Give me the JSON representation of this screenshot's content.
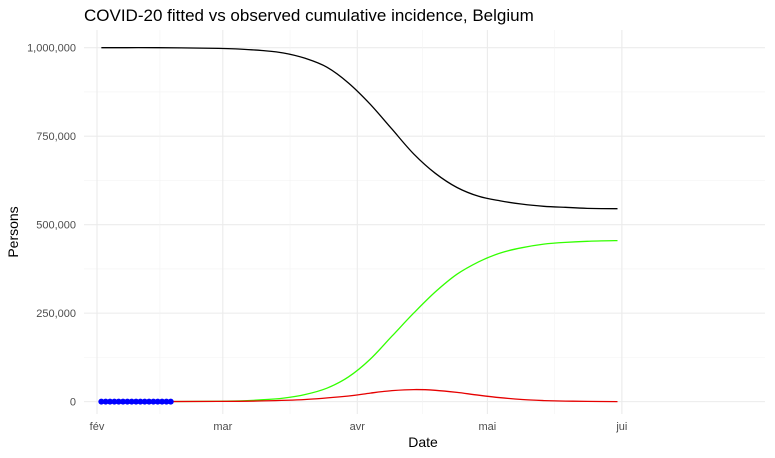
{
  "chart_data": {
    "type": "line",
    "title": "COVID-20 fitted vs observed cumulative incidence, Belgium",
    "xlabel": "Date",
    "ylabel": "Persons",
    "x_range": [
      "2020-01-29",
      "2020-07-04"
    ],
    "y_range": [
      -35000,
      1050000
    ],
    "x_ticks": [
      {
        "date": "2020-02-01",
        "label": "fév"
      },
      {
        "date": "2020-03-01",
        "label": "mar"
      },
      {
        "date": "2020-04-01",
        "label": "avr"
      },
      {
        "date": "2020-05-01",
        "label": "mai"
      },
      {
        "date": "2020-06-01",
        "label": "jui"
      }
    ],
    "y_ticks": [
      {
        "value": 0,
        "label": "0"
      },
      {
        "value": 250000,
        "label": "250,000"
      },
      {
        "value": 500000,
        "label": "500,000"
      },
      {
        "value": 750000,
        "label": "750,000"
      },
      {
        "value": 1000000,
        "label": "1,000,000"
      }
    ],
    "grid": true,
    "legend": "none",
    "series": [
      {
        "kind": "line",
        "color": "#000000",
        "points": [
          [
            "2020-02-02",
            1000000
          ],
          [
            "2020-02-15",
            1000000
          ],
          [
            "2020-02-29",
            998000
          ],
          [
            "2020-03-05",
            996000
          ],
          [
            "2020-03-10",
            992000
          ],
          [
            "2020-03-15",
            985000
          ],
          [
            "2020-03-20",
            970000
          ],
          [
            "2020-03-25",
            945000
          ],
          [
            "2020-03-30",
            900000
          ],
          [
            "2020-04-04",
            840000
          ],
          [
            "2020-04-09",
            770000
          ],
          [
            "2020-04-14",
            700000
          ],
          [
            "2020-04-19",
            645000
          ],
          [
            "2020-04-24",
            605000
          ],
          [
            "2020-04-29",
            580000
          ],
          [
            "2020-05-04",
            567000
          ],
          [
            "2020-05-09",
            558000
          ],
          [
            "2020-05-14",
            552000
          ],
          [
            "2020-05-19",
            549000
          ],
          [
            "2020-05-24",
            546000
          ],
          [
            "2020-05-31",
            545000
          ]
        ]
      },
      {
        "kind": "line",
        "color": "#33ff00",
        "points": [
          [
            "2020-02-02",
            0
          ],
          [
            "2020-02-15",
            0
          ],
          [
            "2020-02-29",
            1000
          ],
          [
            "2020-03-05",
            2000
          ],
          [
            "2020-03-10",
            5000
          ],
          [
            "2020-03-15",
            10000
          ],
          [
            "2020-03-20",
            20000
          ],
          [
            "2020-03-25",
            38000
          ],
          [
            "2020-03-30",
            70000
          ],
          [
            "2020-04-04",
            120000
          ],
          [
            "2020-04-09",
            185000
          ],
          [
            "2020-04-14",
            250000
          ],
          [
            "2020-04-19",
            310000
          ],
          [
            "2020-04-24",
            360000
          ],
          [
            "2020-04-29",
            395000
          ],
          [
            "2020-05-04",
            420000
          ],
          [
            "2020-05-09",
            435000
          ],
          [
            "2020-05-14",
            445000
          ],
          [
            "2020-05-19",
            450000
          ],
          [
            "2020-05-24",
            453000
          ],
          [
            "2020-05-31",
            455000
          ]
        ]
      },
      {
        "kind": "line",
        "color": "#e60000",
        "points": [
          [
            "2020-02-02",
            0
          ],
          [
            "2020-02-29",
            500
          ],
          [
            "2020-03-10",
            2000
          ],
          [
            "2020-03-20",
            6000
          ],
          [
            "2020-03-30",
            16000
          ],
          [
            "2020-04-04",
            24000
          ],
          [
            "2020-04-09",
            31000
          ],
          [
            "2020-04-14",
            34000
          ],
          [
            "2020-04-19",
            32000
          ],
          [
            "2020-04-24",
            26000
          ],
          [
            "2020-04-29",
            18000
          ],
          [
            "2020-05-04",
            11000
          ],
          [
            "2020-05-09",
            6000
          ],
          [
            "2020-05-14",
            3000
          ],
          [
            "2020-05-19",
            1500
          ],
          [
            "2020-05-24",
            700
          ],
          [
            "2020-05-31",
            0
          ]
        ]
      },
      {
        "kind": "scatter",
        "color": "#0000ff",
        "points": [
          [
            "2020-02-02",
            0
          ],
          [
            "2020-02-03",
            0
          ],
          [
            "2020-02-04",
            0
          ],
          [
            "2020-02-05",
            0
          ],
          [
            "2020-02-06",
            0
          ],
          [
            "2020-02-07",
            0
          ],
          [
            "2020-02-08",
            0
          ],
          [
            "2020-02-09",
            0
          ],
          [
            "2020-02-10",
            0
          ],
          [
            "2020-02-11",
            0
          ],
          [
            "2020-02-12",
            0
          ],
          [
            "2020-02-13",
            0
          ],
          [
            "2020-02-14",
            0
          ],
          [
            "2020-02-15",
            0
          ],
          [
            "2020-02-16",
            0
          ],
          [
            "2020-02-17",
            0
          ],
          [
            "2020-02-18",
            0
          ]
        ]
      }
    ]
  }
}
